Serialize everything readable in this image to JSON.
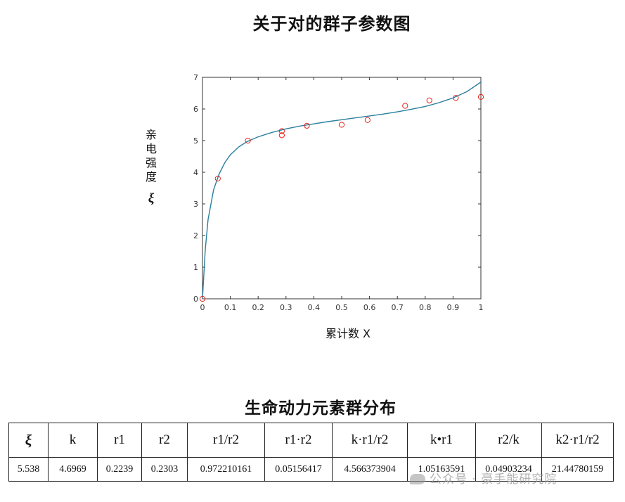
{
  "chart_data": {
    "type": "scatter",
    "title": "关于对的群子参数图",
    "xlabel": "累计数 X",
    "ylabel": "亲电强度",
    "ylabel_symbol": "ξ",
    "xlim": [
      0,
      1
    ],
    "ylim": [
      0,
      7
    ],
    "xticks": [
      "0",
      "0.1",
      "0.2",
      "0.3",
      "0.4",
      "0.5",
      "0.6",
      "0.7",
      "0.8",
      "0.9",
      "1"
    ],
    "yticks": [
      "0",
      "1",
      "2",
      "3",
      "4",
      "5",
      "6",
      "7"
    ],
    "grid": false,
    "series": [
      {
        "type": "scatter",
        "marker": "circle-open",
        "color": "#e8201a",
        "x": [
          0.0,
          0.055,
          0.163,
          0.285,
          0.285,
          0.375,
          0.5,
          0.593,
          0.728,
          0.815,
          0.91,
          1.0
        ],
        "y": [
          0.0,
          3.8,
          5.0,
          5.3,
          5.17,
          5.47,
          5.5,
          5.65,
          6.1,
          6.27,
          6.35,
          6.38
        ]
      },
      {
        "type": "line",
        "color": "#2a7f9e",
        "x": [
          0.0,
          0.01,
          0.02,
          0.04,
          0.06,
          0.08,
          0.1,
          0.13,
          0.16,
          0.2,
          0.25,
          0.3,
          0.35,
          0.4,
          0.45,
          0.5,
          0.55,
          0.6,
          0.65,
          0.7,
          0.75,
          0.8,
          0.85,
          0.9,
          0.95,
          1.0
        ],
        "y": [
          0.0,
          1.55,
          2.5,
          3.45,
          3.95,
          4.3,
          4.55,
          4.8,
          4.97,
          5.12,
          5.26,
          5.37,
          5.46,
          5.53,
          5.6,
          5.66,
          5.72,
          5.78,
          5.84,
          5.91,
          5.99,
          6.08,
          6.2,
          6.35,
          6.55,
          6.85
        ]
      }
    ]
  },
  "table": {
    "title": "生命动力元素群分布",
    "headers": [
      "ξ",
      "k",
      "r1",
      "r2",
      "r1/r2",
      "r1·r2",
      "k·r1/r2",
      "k•r1",
      "r2/k",
      "k2·r1/r2"
    ],
    "values": [
      "5.538",
      "4.6969",
      "0.2239",
      "0.2303",
      "0.972210161",
      "0.05156417",
      "4.566373904",
      "1.05163591",
      "0.04903234",
      "21.44780159"
    ]
  },
  "watermark": "公众号 · 豪手能研究院"
}
